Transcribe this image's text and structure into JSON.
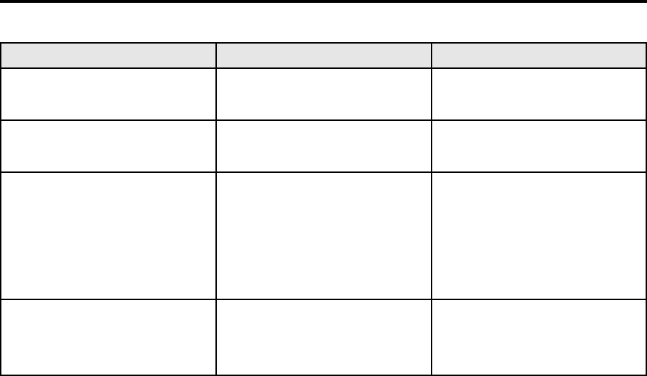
{
  "table": {
    "header": [
      "",
      "",
      ""
    ],
    "rows": [
      [
        "",
        "",
        ""
      ],
      [
        "",
        "",
        ""
      ],
      [
        "",
        "",
        ""
      ],
      [
        "",
        "",
        ""
      ]
    ]
  }
}
